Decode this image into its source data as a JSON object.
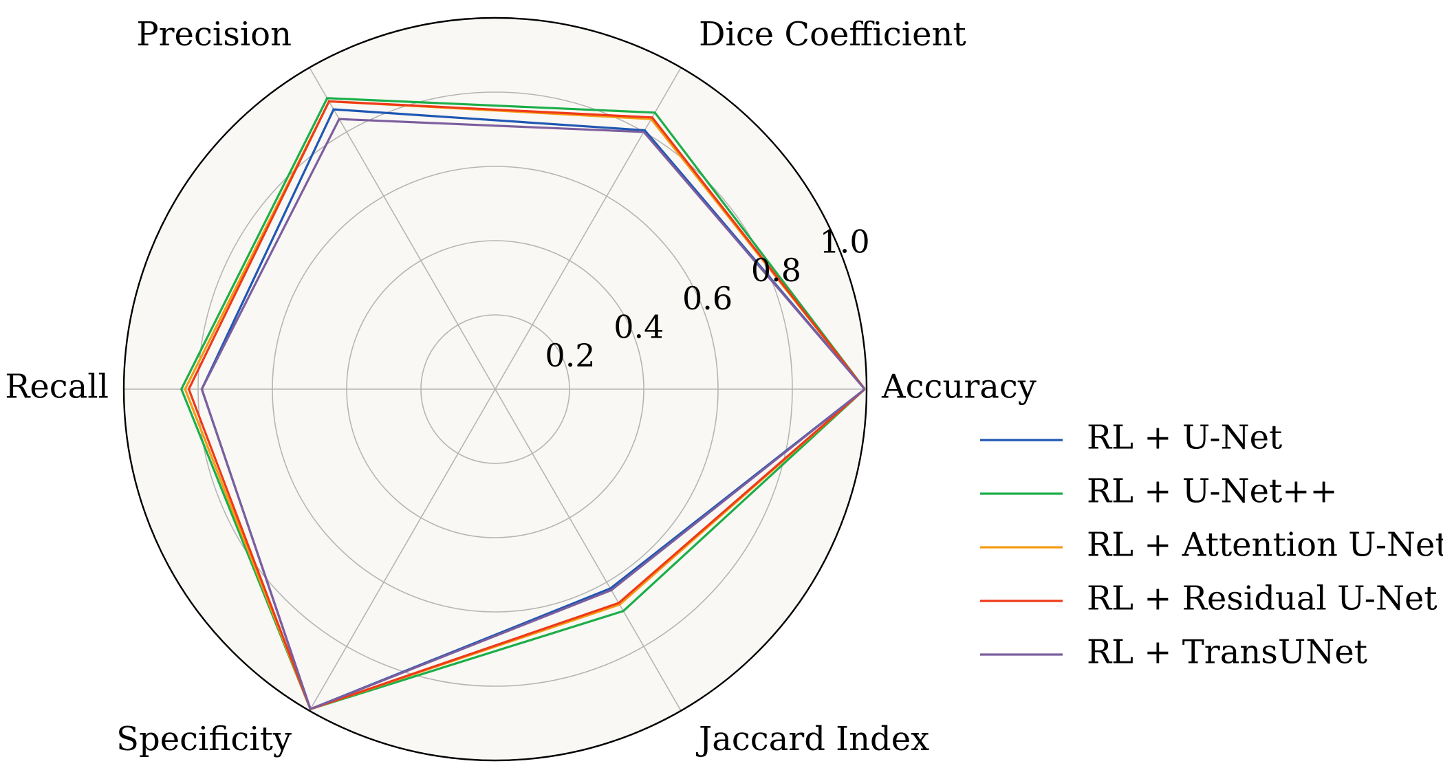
{
  "chart_data": {
    "type": "radar",
    "axes": [
      "Accuracy",
      "Dice Coefficient",
      "Precision",
      "Recall",
      "Specificity",
      "Jaccard Index"
    ],
    "rlim": [
      0,
      1.0
    ],
    "r_ticks": [
      "0.2",
      "0.4",
      "0.6",
      "0.8",
      "1.0"
    ],
    "grid": true,
    "legend_position": "right",
    "colors": {
      "background": "#f9f8f4",
      "grid": "#b5b5b5",
      "frame": "#000000"
    },
    "series": [
      {
        "name": "RL + U-Net",
        "color": "#1f57b3",
        "values": [
          0.995,
          0.805,
          0.87,
          0.79,
          0.995,
          0.62
        ]
      },
      {
        "name": "RL + U-Net++",
        "color": "#1cae4a",
        "values": [
          0.995,
          0.86,
          0.905,
          0.845,
          0.995,
          0.69
        ]
      },
      {
        "name": "RL + Attention U-Net",
        "color": "#f59c14",
        "values": [
          0.995,
          0.84,
          0.895,
          0.835,
          0.995,
          0.67
        ]
      },
      {
        "name": "RL + Residual U-Net",
        "color": "#ee3a19",
        "values": [
          0.995,
          0.845,
          0.895,
          0.825,
          0.995,
          0.665
        ]
      },
      {
        "name": "RL + TransUNet",
        "color": "#7c5e9e",
        "values": [
          0.995,
          0.8,
          0.84,
          0.79,
          0.995,
          0.625
        ]
      }
    ]
  }
}
